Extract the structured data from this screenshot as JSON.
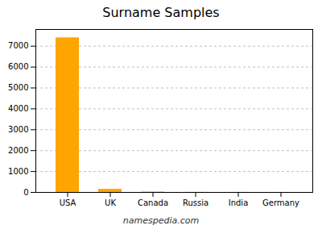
{
  "chart_data": {
    "type": "bar",
    "title": "Surname Samples",
    "caption": "namespedia.com",
    "categories": [
      "USA",
      "UK",
      "Canada",
      "Russia",
      "India",
      "Germany"
    ],
    "values": [
      7400,
      150,
      20,
      5,
      3,
      2
    ],
    "color": "#FFA500",
    "ylim": [
      0,
      7800
    ],
    "yticks": [
      0,
      1000,
      2000,
      3000,
      4000,
      5000,
      6000,
      7000
    ],
    "grid": true
  }
}
